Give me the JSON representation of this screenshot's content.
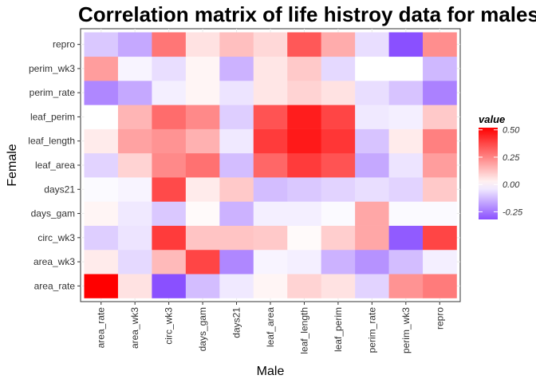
{
  "chart_data": {
    "type": "heatmap",
    "title": "Correlation matrix of life histroy data for males and females",
    "xlabel": "Male",
    "ylabel": "Female",
    "x_categories": [
      "area_rate",
      "area_wk3",
      "circ_wk3",
      "days_gam",
      "days21",
      "leaf_area",
      "leaf_length",
      "leaf_perim",
      "perim_rate",
      "perim_wk3",
      "repro"
    ],
    "y_categories": [
      "area_rate",
      "area_wk3",
      "circ_wk3",
      "days_gam",
      "days21",
      "leaf_area",
      "leaf_length",
      "leaf_perim",
      "perim_rate",
      "perim_wk3",
      "repro"
    ],
    "values": [
      [
        0.52,
        0.06,
        -0.32,
        -0.12,
        -0.04,
        0.02,
        0.09,
        0.06,
        -0.08,
        0.22,
        0.27
      ],
      [
        0.04,
        -0.07,
        0.14,
        0.38,
        -0.22,
        -0.02,
        -0.03,
        -0.14,
        -0.2,
        -0.12,
        -0.03
      ],
      [
        -0.09,
        -0.05,
        0.4,
        0.12,
        0.12,
        0.11,
        0.01,
        0.1,
        0.18,
        -0.3,
        0.38
      ],
      [
        0.02,
        -0.04,
        -0.1,
        0.01,
        -0.14,
        -0.03,
        -0.03,
        -0.01,
        0.18,
        -0.01,
        -0.01
      ],
      [
        -0.01,
        -0.02,
        0.37,
        0.04,
        0.11,
        -0.12,
        -0.1,
        -0.08,
        -0.06,
        -0.08,
        0.11
      ],
      [
        -0.08,
        0.09,
        0.24,
        0.29,
        -0.12,
        0.31,
        0.4,
        0.35,
        -0.16,
        -0.05,
        0.2
      ],
      [
        0.04,
        0.19,
        0.22,
        0.16,
        -0.04,
        0.4,
        0.47,
        0.41,
        -0.11,
        0.04,
        0.26
      ],
      [
        0.0,
        0.15,
        0.3,
        0.24,
        -0.09,
        0.35,
        0.46,
        0.38,
        -0.04,
        -0.03,
        0.11
      ],
      [
        -0.22,
        -0.16,
        -0.03,
        0.02,
        -0.05,
        0.05,
        0.09,
        0.06,
        -0.06,
        -0.11,
        -0.23
      ],
      [
        0.2,
        -0.02,
        -0.06,
        0.02,
        -0.14,
        0.05,
        0.11,
        -0.07,
        0.0,
        0.0,
        -0.13
      ],
      [
        -0.1,
        -0.16,
        0.28,
        0.06,
        0.13,
        0.08,
        0.34,
        0.17,
        -0.06,
        -0.32,
        0.23
      ]
    ],
    "color_scale": {
      "low": "#8a50ff",
      "mid": "#ffffff",
      "high": "#ff0000",
      "limits": [
        -0.32,
        0.52
      ]
    },
    "legend": {
      "title": "value",
      "position": "right",
      "breaks": [
        0.5,
        0.25,
        0.0,
        -0.25
      ],
      "labels": [
        "0.50",
        "0.25",
        "0.00",
        "-0.25"
      ]
    },
    "grid": true
  }
}
